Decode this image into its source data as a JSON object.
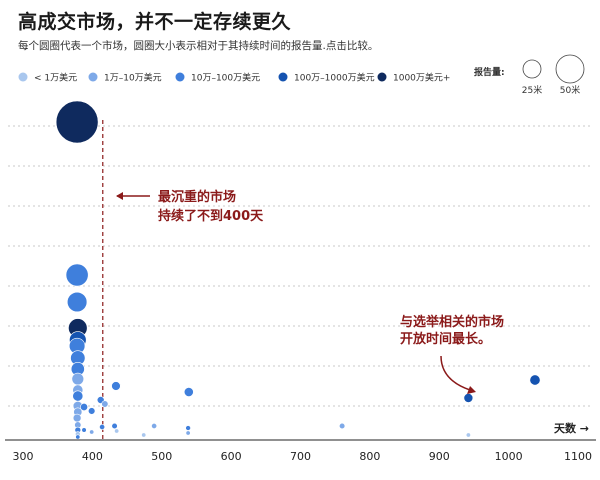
{
  "title": "高成交市场，并不一定存续更久",
  "subtitle": "每个圆圈代表一个市场，圆圈大小表示相对于其持续时间的报告量.点击比较。",
  "colors": {
    "c1": "#a9c7ee",
    "c2": "#7ea9e8",
    "c3": "#3f7fdc",
    "c4": "#1553b0",
    "c5": "#0f2a5e",
    "annotation": "#8b1a1a"
  },
  "legend": {
    "items": [
      {
        "label": "< 1万美元",
        "color": "c1"
      },
      {
        "label": "1万–10万美元",
        "color": "c2"
      },
      {
        "label": "10万–100万美元",
        "color": "c3"
      },
      {
        "label": "100万–1000万美元",
        "color": "c4"
      },
      {
        "label": "1000万美元+",
        "color": "c5"
      }
    ],
    "size_title": "报告量:",
    "sizes": [
      {
        "label": "25米",
        "volume": 25
      },
      {
        "label": "50米",
        "volume": 50
      }
    ]
  },
  "annotations": [
    {
      "lines": [
        "最沉重的市场",
        "持续了不到400天"
      ],
      "pointer_x": 415
    },
    {
      "lines": [
        "与选举相关的市场",
        "开放时间最长。"
      ],
      "pointer_x": 940
    }
  ],
  "chart_data": {
    "type": "scatter",
    "title": "高成交市场，并不一定存续更久",
    "xlabel": "天数 →",
    "xlim": [
      300,
      1100
    ],
    "xticks": [
      300,
      400,
      500,
      600,
      700,
      800,
      900,
      1000,
      1100
    ],
    "reference_line_x": 415,
    "points": [
      {
        "x": 378,
        "y": 318,
        "volume": 50,
        "color": "c5"
      },
      {
        "x": 378,
        "y": 165,
        "volume": 14,
        "color": "c3"
      },
      {
        "x": 378,
        "y": 138,
        "volume": 11,
        "color": "c3"
      },
      {
        "x": 379,
        "y": 112,
        "volume": 10,
        "color": "c5"
      },
      {
        "x": 379,
        "y": 100,
        "volume": 8,
        "color": "c4"
      },
      {
        "x": 378,
        "y": 94,
        "volume": 7,
        "color": "c3"
      },
      {
        "x": 379,
        "y": 82,
        "volume": 6,
        "color": "c3"
      },
      {
        "x": 379,
        "y": 71,
        "volume": 5,
        "color": "c3"
      },
      {
        "x": 379,
        "y": 61,
        "volume": 4,
        "color": "c2"
      },
      {
        "x": 379,
        "y": 50,
        "volume": 3,
        "color": "c2"
      },
      {
        "x": 379,
        "y": 44,
        "volume": 3,
        "color": "c3"
      },
      {
        "x": 379,
        "y": 34,
        "volume": 2.5,
        "color": "c2"
      },
      {
        "x": 379,
        "y": 28,
        "volume": 2,
        "color": "c2"
      },
      {
        "x": 378,
        "y": 22,
        "volume": 1.8,
        "color": "c2"
      },
      {
        "x": 379,
        "y": 15,
        "volume": 1.2,
        "color": "c2"
      },
      {
        "x": 379,
        "y": 10,
        "volume": 1,
        "color": "c3"
      },
      {
        "x": 379,
        "y": 6,
        "volume": 0.7,
        "color": "c1"
      },
      {
        "x": 379,
        "y": 3,
        "volume": 0.4,
        "color": "c3"
      },
      {
        "x": 388,
        "y": 33,
        "volume": 1.5,
        "color": "c3"
      },
      {
        "x": 388,
        "y": 10,
        "volume": 0.6,
        "color": "c3"
      },
      {
        "x": 399,
        "y": 29,
        "volume": 1.3,
        "color": "c3"
      },
      {
        "x": 399,
        "y": 8,
        "volume": 0.5,
        "color": "c2"
      },
      {
        "x": 412,
        "y": 40,
        "volume": 1.4,
        "color": "c3"
      },
      {
        "x": 414,
        "y": 13,
        "volume": 0.8,
        "color": "c3"
      },
      {
        "x": 418,
        "y": 36,
        "volume": 1.2,
        "color": "c2"
      },
      {
        "x": 434,
        "y": 54,
        "volume": 2.2,
        "color": "c3"
      },
      {
        "x": 432,
        "y": 14,
        "volume": 0.9,
        "color": "c3"
      },
      {
        "x": 435,
        "y": 9,
        "volume": 0.5,
        "color": "c1"
      },
      {
        "x": 474,
        "y": 5,
        "volume": 0.5,
        "color": "c1"
      },
      {
        "x": 489,
        "y": 14,
        "volume": 0.8,
        "color": "c2"
      },
      {
        "x": 539,
        "y": 48,
        "volume": 2.4,
        "color": "c3"
      },
      {
        "x": 538,
        "y": 12,
        "volume": 0.7,
        "color": "c3"
      },
      {
        "x": 538,
        "y": 7,
        "volume": 0.5,
        "color": "c2"
      },
      {
        "x": 760,
        "y": 14,
        "volume": 0.9,
        "color": "c2"
      },
      {
        "x": 942,
        "y": 42,
        "volume": 2.3,
        "color": "c4"
      },
      {
        "x": 942,
        "y": 5,
        "volume": 0.5,
        "color": "c1"
      },
      {
        "x": 1038,
        "y": 60,
        "volume": 3,
        "color": "c4"
      }
    ]
  }
}
